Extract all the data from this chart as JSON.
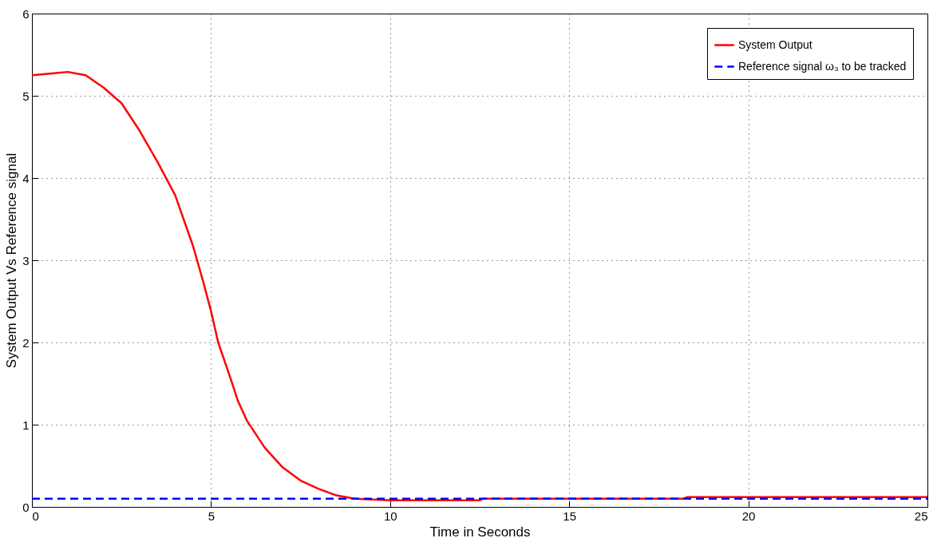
{
  "chart_data": {
    "type": "line",
    "xlabel": "Time in Seconds",
    "ylabel": "System Output Vs Reference signal",
    "xlim": [
      0,
      25
    ],
    "ylim": [
      0,
      6
    ],
    "xticks": [
      0,
      5,
      10,
      15,
      20,
      25
    ],
    "yticks": [
      0,
      1,
      2,
      3,
      4,
      5,
      6
    ],
    "grid": true,
    "legend": "top right",
    "series": [
      {
        "name": "System Output",
        "color": "#ff0000",
        "line_style": "solid",
        "x": [
          0,
          0.5,
          1,
          1.5,
          2,
          2.5,
          3,
          3.5,
          4,
          4.5,
          4.8,
          5,
          5.2,
          5.5,
          5.75,
          6,
          6.5,
          7,
          7.5,
          8,
          8.5,
          9,
          10,
          12.5,
          12.6,
          18.2,
          18.3,
          25
        ],
        "values": [
          5.25,
          5.27,
          5.29,
          5.25,
          5.1,
          4.91,
          4.58,
          4.2,
          3.79,
          3.17,
          2.71,
          2.38,
          2.0,
          1.62,
          1.29,
          1.05,
          0.72,
          0.48,
          0.32,
          0.22,
          0.14,
          0.1,
          0.08,
          0.08,
          0.1,
          0.1,
          0.12,
          0.12
        ]
      },
      {
        "name": "Reference signal ω₃ to be tracked",
        "color": "#0000ff",
        "line_style": "dashed",
        "x": [
          0,
          25
        ],
        "values": [
          0.1,
          0.1
        ]
      }
    ]
  }
}
